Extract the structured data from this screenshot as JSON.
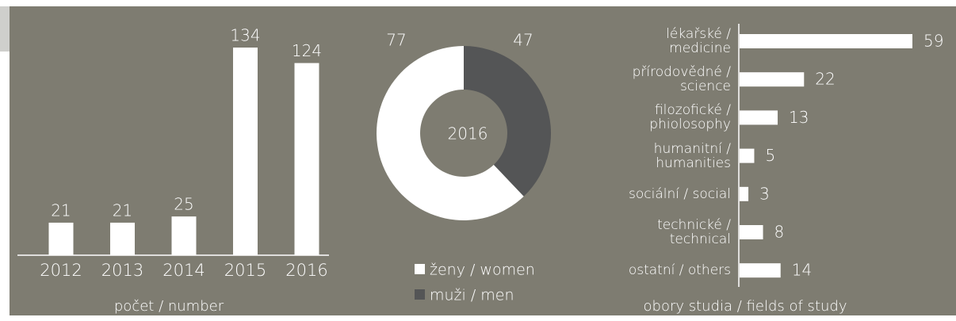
{
  "chart_data": [
    {
      "type": "bar",
      "categories": [
        "2012",
        "2013",
        "2014",
        "2015",
        "2016"
      ],
      "values": [
        21,
        21,
        25,
        134,
        124
      ],
      "color": "#ffffff",
      "xlabel": "počet / number"
    },
    {
      "type": "pie",
      "title": "2016",
      "categories": [
        "ženy / women",
        "muži / men"
      ],
      "values": [
        77,
        47
      ],
      "colors": [
        "#ffffff",
        "#545556"
      ]
    },
    {
      "type": "barh",
      "categories": [
        "lékařské /\nmedicine",
        "přírodovědné /\nscience",
        "filozofické /\nphiolosophy",
        "humanitní /\nhumanities",
        "sociální / social",
        "technické /\ntechnical",
        "ostatní / others"
      ],
      "values": [
        59,
        22,
        13,
        5,
        3,
        8,
        14
      ],
      "color": "#ffffff",
      "xlabel": "obory studia / fields of study"
    }
  ]
}
